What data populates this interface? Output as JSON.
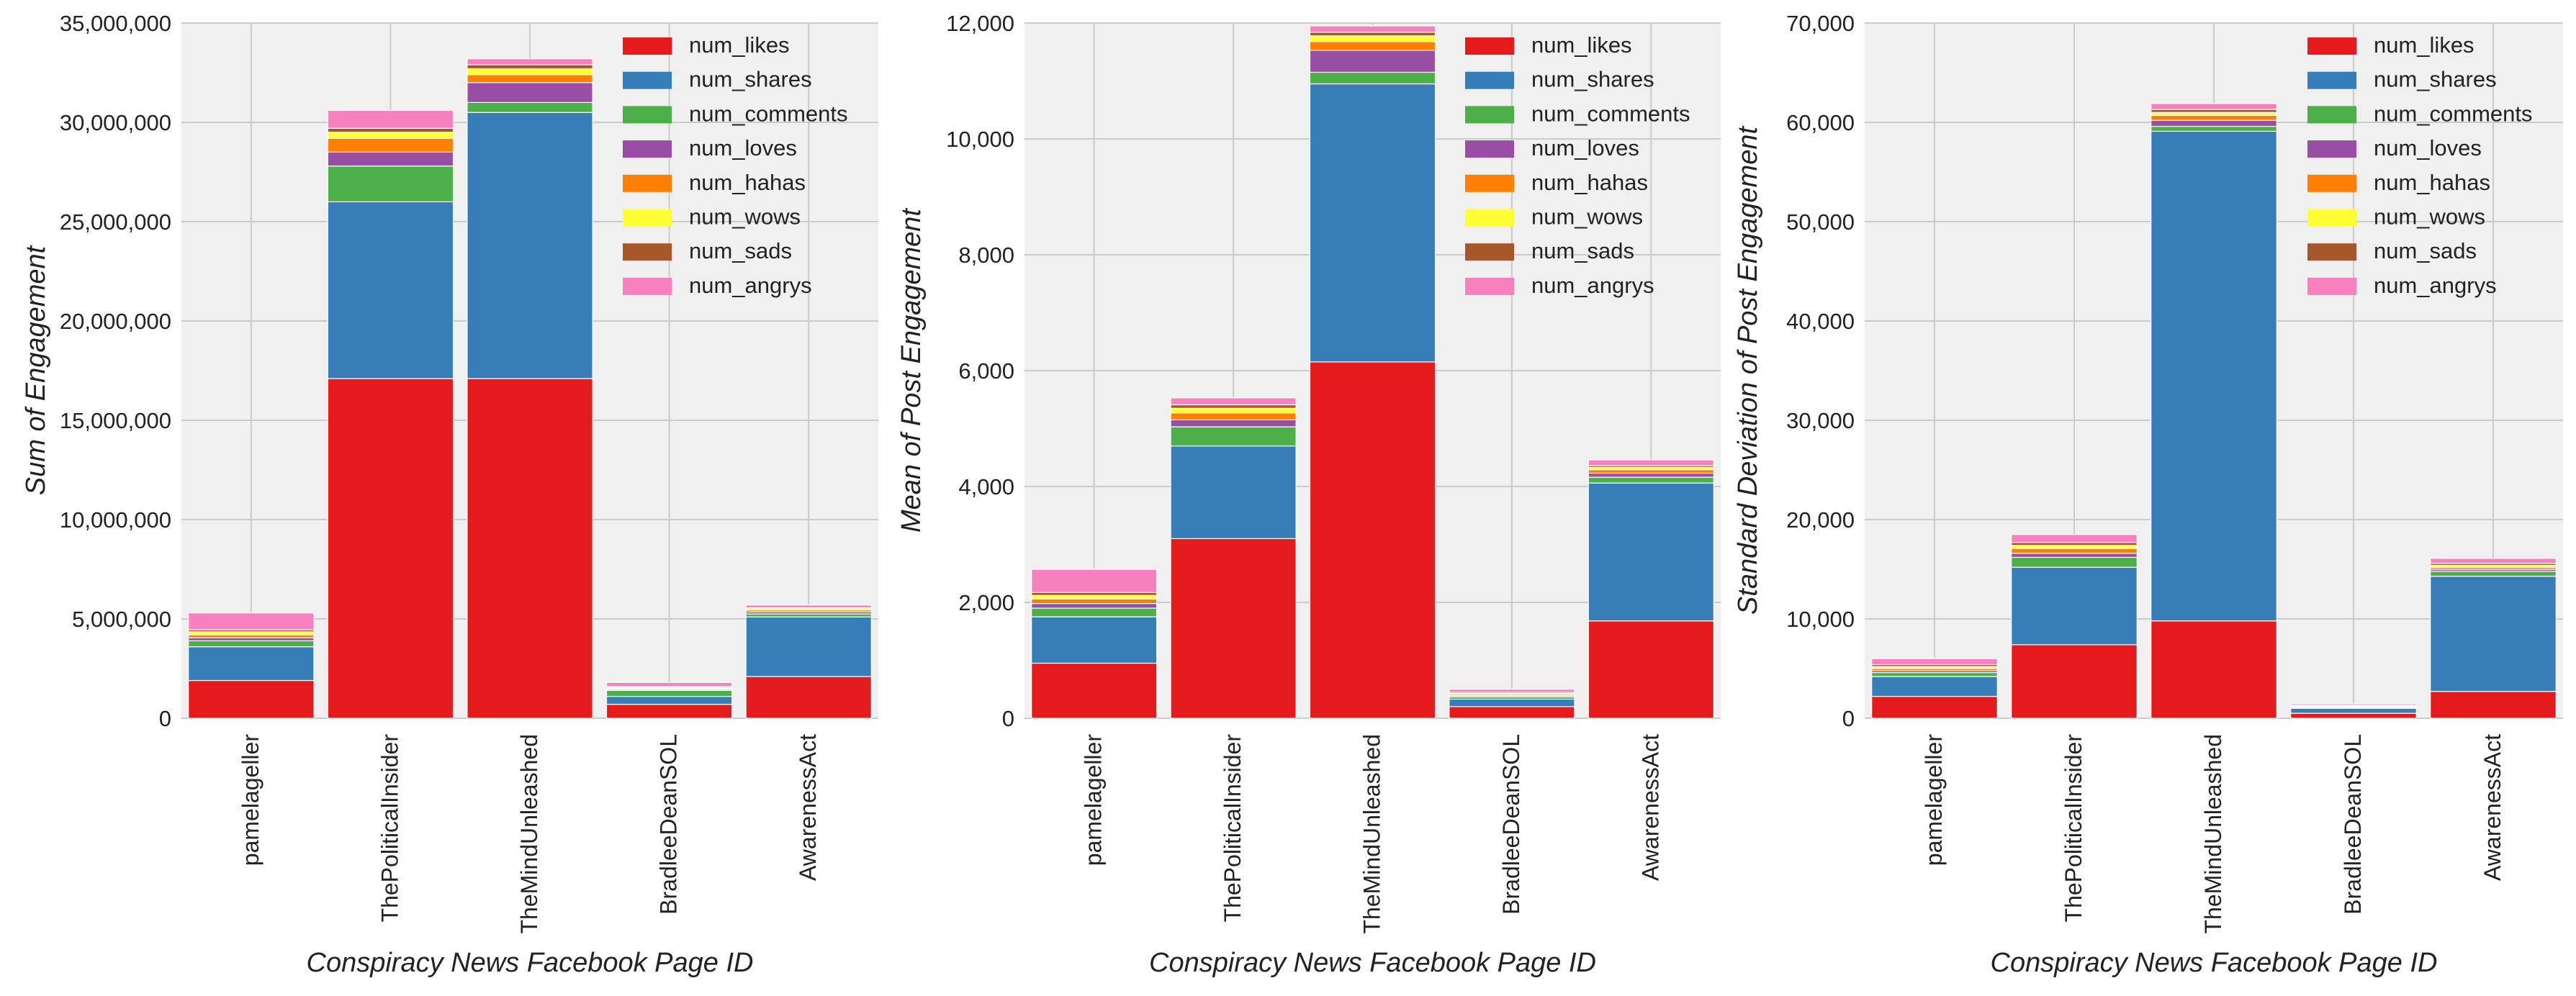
{
  "series_colors": [
    "#e41a1c",
    "#377eb8",
    "#4daf4a",
    "#984ea3",
    "#ff7f00",
    "#ffff33",
    "#a65628",
    "#f781bf"
  ],
  "chart_data": [
    {
      "type": "bar",
      "stacked": true,
      "title": "",
      "xlabel": "Conspiracy News Facebook Page ID",
      "ylabel": "Sum of Engagement",
      "categories": [
        "pamelageller",
        "ThePoliticalInsider",
        "TheMindUnleashed",
        "BradleeDeanSOL",
        "AwarenessAct"
      ],
      "ylim": [
        0,
        35000000
      ],
      "yticks": [
        0,
        5000000,
        10000000,
        15000000,
        20000000,
        25000000,
        30000000,
        35000000
      ],
      "ytick_labels": [
        "0",
        "5,000,000",
        "10,000,000",
        "15,000,000",
        "20,000,000",
        "25,000,000",
        "30,000,000",
        "35,000,000"
      ],
      "grid": true,
      "legend": "top-right",
      "series": [
        {
          "name": "num_likes",
          "values": [
            1900000,
            17100000,
            17100000,
            700000,
            2100000
          ]
        },
        {
          "name": "num_shares",
          "values": [
            1700000,
            8900000,
            13400000,
            400000,
            3000000
          ]
        },
        {
          "name": "num_comments",
          "values": [
            300000,
            1800000,
            500000,
            300000,
            150000
          ]
        },
        {
          "name": "num_loves",
          "values": [
            150000,
            700000,
            1000000,
            50000,
            100000
          ]
        },
        {
          "name": "num_hahas",
          "values": [
            150000,
            700000,
            400000,
            50000,
            100000
          ]
        },
        {
          "name": "num_wows",
          "values": [
            150000,
            300000,
            300000,
            50000,
            60000
          ]
        },
        {
          "name": "num_sads",
          "values": [
            100000,
            200000,
            200000,
            50000,
            50000
          ]
        },
        {
          "name": "num_angrys",
          "values": [
            850000,
            900000,
            300000,
            200000,
            140000
          ]
        }
      ]
    },
    {
      "type": "bar",
      "stacked": true,
      "title": "",
      "xlabel": "Conspiracy News Facebook Page ID",
      "ylabel": "Mean of Post Engagement",
      "categories": [
        "pamelageller",
        "ThePoliticalInsider",
        "TheMindUnleashed",
        "BradleeDeanSOL",
        "AwarenessAct"
      ],
      "ylim": [
        0,
        12000
      ],
      "yticks": [
        0,
        2000,
        4000,
        6000,
        8000,
        10000,
        12000
      ],
      "ytick_labels": [
        "0",
        "2,000",
        "4,000",
        "6,000",
        "8,000",
        "10,000",
        "12,000"
      ],
      "grid": true,
      "legend": "top-right",
      "series": [
        {
          "name": "num_likes",
          "values": [
            950,
            3100,
            6150,
            200,
            1680
          ]
        },
        {
          "name": "num_shares",
          "values": [
            800,
            1600,
            4800,
            130,
            2380
          ]
        },
        {
          "name": "num_comments",
          "values": [
            150,
            330,
            200,
            40,
            100
          ]
        },
        {
          "name": "num_loves",
          "values": [
            80,
            120,
            380,
            20,
            70
          ]
        },
        {
          "name": "num_hahas",
          "values": [
            80,
            120,
            150,
            20,
            60
          ]
        },
        {
          "name": "num_wows",
          "values": [
            60,
            80,
            100,
            20,
            40
          ]
        },
        {
          "name": "num_sads",
          "values": [
            50,
            60,
            60,
            20,
            30
          ]
        },
        {
          "name": "num_angrys",
          "values": [
            400,
            120,
            110,
            50,
            100
          ]
        }
      ]
    },
    {
      "type": "bar",
      "stacked": true,
      "title": "",
      "xlabel": "Conspiracy News Facebook Page ID",
      "ylabel": "Standard Deviation of Post Engagement",
      "categories": [
        "pamelageller",
        "ThePoliticalInsider",
        "TheMindUnleashed",
        "BradleeDeanSOL",
        "AwarenessAct"
      ],
      "ylim": [
        0,
        70000
      ],
      "yticks": [
        0,
        10000,
        20000,
        30000,
        40000,
        50000,
        60000,
        70000
      ],
      "ytick_labels": [
        "0",
        "10,000",
        "20,000",
        "30,000",
        "40,000",
        "50,000",
        "60,000",
        "70,000"
      ],
      "grid": true,
      "legend": "top-right",
      "series": [
        {
          "name": "num_likes",
          "values": [
            2200,
            7400,
            9800,
            500,
            2700
          ]
        },
        {
          "name": "num_shares",
          "values": [
            2000,
            7800,
            49300,
            500,
            11600
          ]
        },
        {
          "name": "num_comments",
          "values": [
            400,
            1000,
            500,
            100,
            500
          ]
        },
        {
          "name": "num_loves",
          "values": [
            200,
            400,
            600,
            50,
            200
          ]
        },
        {
          "name": "num_hahas",
          "values": [
            200,
            500,
            500,
            50,
            200
          ]
        },
        {
          "name": "num_wows",
          "values": [
            200,
            300,
            300,
            50,
            200
          ]
        },
        {
          "name": "num_sads",
          "values": [
            200,
            300,
            300,
            50,
            200
          ]
        },
        {
          "name": "num_angrys",
          "values": [
            600,
            800,
            600,
            150,
            500
          ]
        }
      ]
    }
  ]
}
